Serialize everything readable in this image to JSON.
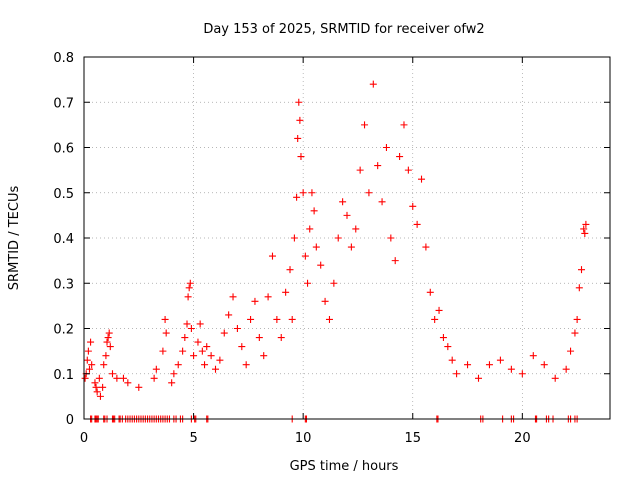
{
  "chart_data": {
    "type": "scatter",
    "title": "Day 153 of 2025, SRMTID for receiver ofw2",
    "xlabel": "GPS time / hours",
    "ylabel": "SRMTID / TECUs",
    "xlim": [
      0,
      24
    ],
    "ylim": [
      0,
      0.8
    ],
    "grid": true,
    "marker": "+",
    "series_color": "#ff0000",
    "xticks": [
      0,
      5,
      10,
      15,
      20
    ],
    "xtick_labels": [
      "0",
      "5",
      "10",
      "15",
      "20"
    ],
    "yticks": [
      0,
      0.1,
      0.2,
      0.3,
      0.4,
      0.5,
      0.6,
      0.7,
      0.8
    ],
    "ytick_labels": [
      "0",
      "0.1",
      "0.2",
      "0.3",
      "0.4",
      "0.5",
      "0.6",
      "0.7",
      "0.8"
    ],
    "points": [
      [
        0.05,
        0.09
      ],
      [
        0.1,
        0.1
      ],
      [
        0.15,
        0.13
      ],
      [
        0.2,
        0.15
      ],
      [
        0.25,
        0.11
      ],
      [
        0.3,
        0.17
      ],
      [
        0.35,
        0.12
      ],
      [
        0.5,
        0.08
      ],
      [
        0.55,
        0.07
      ],
      [
        0.6,
        0.06
      ],
      [
        0.7,
        0.09
      ],
      [
        0.75,
        0.05
      ],
      [
        0.85,
        0.07
      ],
      [
        0.9,
        0.12
      ],
      [
        1.0,
        0.14
      ],
      [
        1.05,
        0.17
      ],
      [
        1.1,
        0.18
      ],
      [
        1.15,
        0.19
      ],
      [
        1.2,
        0.16
      ],
      [
        1.3,
        0.1
      ],
      [
        1.5,
        0.09
      ],
      [
        1.8,
        0.09
      ],
      [
        2.0,
        0.08
      ],
      [
        2.5,
        0.07
      ],
      [
        3.2,
        0.09
      ],
      [
        3.3,
        0.11
      ],
      [
        3.6,
        0.15
      ],
      [
        3.7,
        0.22
      ],
      [
        3.75,
        0.19
      ],
      [
        4.0,
        0.08
      ],
      [
        4.1,
        0.1
      ],
      [
        4.3,
        0.12
      ],
      [
        4.5,
        0.15
      ],
      [
        4.6,
        0.18
      ],
      [
        4.7,
        0.21
      ],
      [
        4.75,
        0.27
      ],
      [
        4.8,
        0.29
      ],
      [
        4.85,
        0.3
      ],
      [
        4.9,
        0.2
      ],
      [
        5.0,
        0.14
      ],
      [
        5.2,
        0.17
      ],
      [
        5.3,
        0.21
      ],
      [
        5.4,
        0.15
      ],
      [
        5.5,
        0.12
      ],
      [
        5.6,
        0.16
      ],
      [
        5.8,
        0.14
      ],
      [
        6.0,
        0.11
      ],
      [
        6.2,
        0.13
      ],
      [
        6.4,
        0.19
      ],
      [
        6.6,
        0.23
      ],
      [
        6.8,
        0.27
      ],
      [
        7.0,
        0.2
      ],
      [
        7.2,
        0.16
      ],
      [
        7.4,
        0.12
      ],
      [
        7.6,
        0.22
      ],
      [
        7.8,
        0.26
      ],
      [
        8.0,
        0.18
      ],
      [
        8.2,
        0.14
      ],
      [
        8.4,
        0.27
      ],
      [
        8.6,
        0.36
      ],
      [
        8.8,
        0.22
      ],
      [
        9.0,
        0.18
      ],
      [
        9.2,
        0.28
      ],
      [
        9.4,
        0.33
      ],
      [
        9.5,
        0.22
      ],
      [
        9.6,
        0.4
      ],
      [
        9.7,
        0.49
      ],
      [
        9.75,
        0.62
      ],
      [
        9.8,
        0.7
      ],
      [
        9.85,
        0.66
      ],
      [
        9.9,
        0.58
      ],
      [
        10.0,
        0.5
      ],
      [
        10.1,
        0.36
      ],
      [
        10.2,
        0.3
      ],
      [
        10.3,
        0.42
      ],
      [
        10.4,
        0.5
      ],
      [
        10.5,
        0.46
      ],
      [
        10.6,
        0.38
      ],
      [
        10.8,
        0.34
      ],
      [
        11.0,
        0.26
      ],
      [
        11.2,
        0.22
      ],
      [
        11.4,
        0.3
      ],
      [
        11.6,
        0.4
      ],
      [
        11.8,
        0.48
      ],
      [
        12.0,
        0.45
      ],
      [
        12.2,
        0.38
      ],
      [
        12.4,
        0.42
      ],
      [
        12.6,
        0.55
      ],
      [
        12.8,
        0.65
      ],
      [
        13.0,
        0.5
      ],
      [
        13.2,
        0.74
      ],
      [
        13.4,
        0.56
      ],
      [
        13.6,
        0.48
      ],
      [
        13.8,
        0.6
      ],
      [
        14.0,
        0.4
      ],
      [
        14.2,
        0.35
      ],
      [
        14.4,
        0.58
      ],
      [
        14.6,
        0.65
      ],
      [
        14.8,
        0.55
      ],
      [
        15.0,
        0.47
      ],
      [
        15.2,
        0.43
      ],
      [
        15.4,
        0.53
      ],
      [
        15.6,
        0.38
      ],
      [
        15.8,
        0.28
      ],
      [
        16.0,
        0.22
      ],
      [
        16.2,
        0.24
      ],
      [
        16.4,
        0.18
      ],
      [
        16.6,
        0.16
      ],
      [
        16.8,
        0.13
      ],
      [
        17.0,
        0.1
      ],
      [
        17.5,
        0.12
      ],
      [
        18.0,
        0.09
      ],
      [
        18.5,
        0.12
      ],
      [
        19.0,
        0.13
      ],
      [
        19.5,
        0.11
      ],
      [
        20.0,
        0.1
      ],
      [
        20.5,
        0.14
      ],
      [
        21.0,
        0.12
      ],
      [
        21.5,
        0.09
      ],
      [
        22.0,
        0.11
      ],
      [
        22.2,
        0.15
      ],
      [
        22.4,
        0.19
      ],
      [
        22.5,
        0.22
      ],
      [
        22.6,
        0.29
      ],
      [
        22.7,
        0.33
      ],
      [
        22.8,
        0.42
      ],
      [
        22.85,
        0.41
      ],
      [
        22.9,
        0.43
      ]
    ],
    "zero_points_x": [
      0.3,
      0.35,
      0.5,
      0.55,
      0.6,
      0.65,
      0.9,
      0.95,
      1.05,
      1.3,
      1.35,
      1.4,
      1.6,
      1.65,
      1.75,
      1.9,
      2.0,
      2.1,
      2.2,
      2.3,
      2.4,
      2.5,
      2.6,
      2.7,
      2.8,
      2.9,
      3.0,
      3.1,
      3.2,
      3.3,
      3.4,
      3.5,
      3.6,
      3.7,
      3.8,
      3.9,
      4.1,
      4.2,
      4.4,
      4.5,
      4.9,
      5.05,
      5.1,
      5.6,
      5.65,
      9.5,
      10.1,
      10.15,
      16.1,
      16.15,
      18.1,
      18.2,
      19.1,
      19.5,
      19.6,
      20.6,
      20.65,
      21.1,
      21.2,
      21.4,
      22.1,
      22.2,
      22.4,
      22.5
    ]
  }
}
